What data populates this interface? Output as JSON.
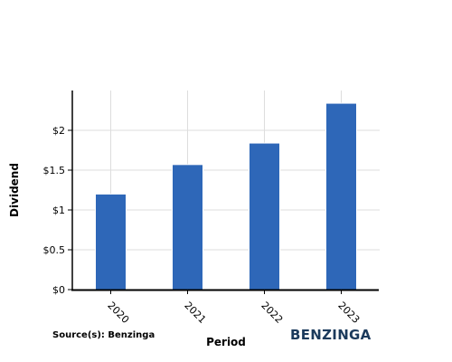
{
  "chart_data": {
    "type": "bar",
    "categories": [
      "2020",
      "2021",
      "2022",
      "2023"
    ],
    "values": [
      1.2,
      1.57,
      1.84,
      2.34
    ],
    "xlabel": "Period",
    "ylabel": "Dividend",
    "ylim": [
      0,
      2.5
    ],
    "yticks": [
      0,
      0.5,
      1,
      1.5,
      2
    ],
    "ytick_labels": [
      "$0",
      "$0.5",
      "$1",
      "$1.5",
      "$2"
    ],
    "grid": true,
    "bar_color": "#2e67b8"
  },
  "footer": {
    "source": "Source(s): Benzinga",
    "logo": "BENZINGA"
  }
}
